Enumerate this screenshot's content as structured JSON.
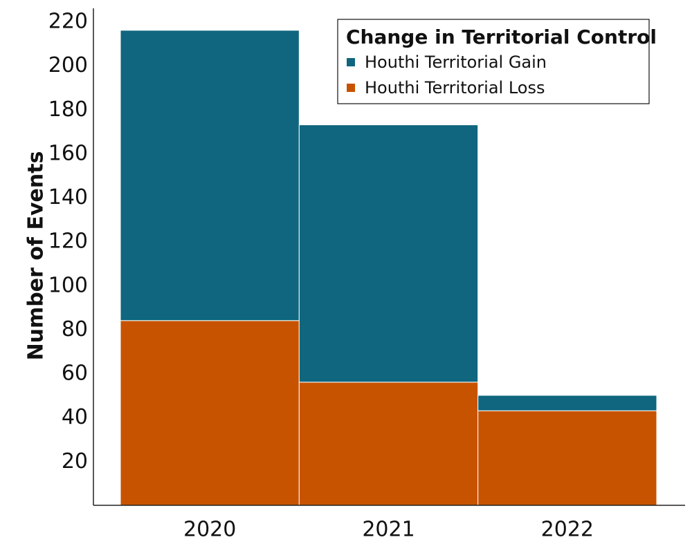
{
  "chart_data": {
    "type": "bar",
    "stacked": true,
    "categories": [
      "2020",
      "2021",
      "2022"
    ],
    "series": [
      {
        "name": "Houthi Territorial Loss",
        "values": [
          84,
          56,
          43
        ],
        "color": "#c75300"
      },
      {
        "name": "Houthi Territorial Gain",
        "values": [
          132,
          117,
          7
        ],
        "color": "#0f667e"
      }
    ],
    "title": "",
    "xlabel": "",
    "ylabel": "Number of Events",
    "ylim": [
      0,
      226
    ],
    "yticks": [
      20,
      40,
      60,
      80,
      100,
      120,
      140,
      160,
      180,
      200,
      220
    ],
    "grid": false,
    "legend": {
      "title": "Change in Territorial Control",
      "placement": "top-right",
      "entries": [
        "Houthi Territorial Gain",
        "Houthi Territorial Loss"
      ]
    }
  }
}
